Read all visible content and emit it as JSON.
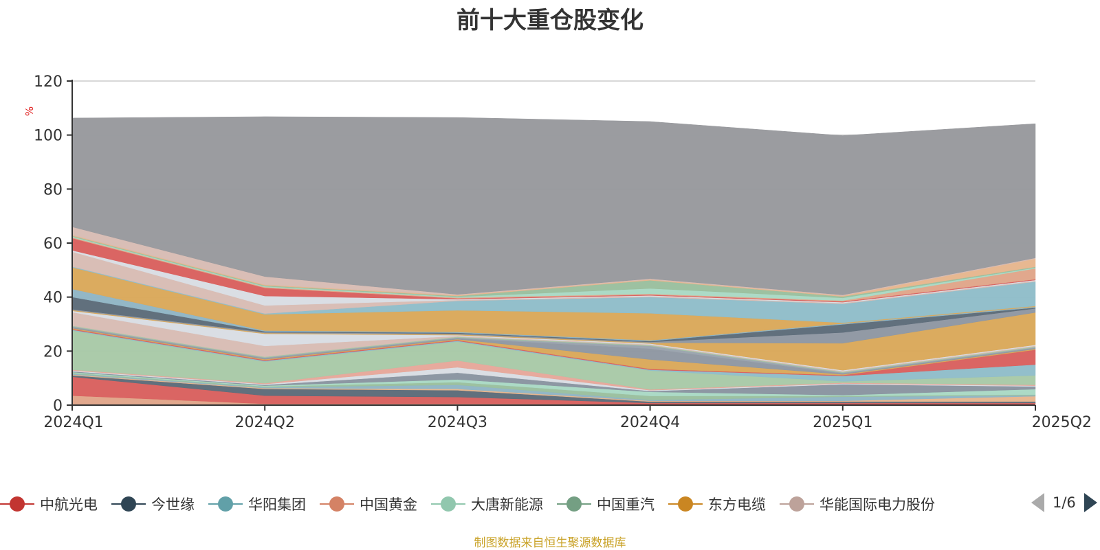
{
  "chart_data": {
    "type": "area",
    "stacked": true,
    "title": "前十大重仓股变化",
    "ylabel": "%",
    "ylim": [
      0,
      120
    ],
    "yticks": [
      0,
      20,
      40,
      60,
      80,
      100,
      120
    ],
    "categories": [
      "2024Q1",
      "2024Q2",
      "2024Q3",
      "2024Q4",
      "2025Q1",
      "2025Q2"
    ],
    "series": [
      {
        "color": "#e0a589",
        "values": [
          3.5,
          0.5,
          0.5,
          0.3,
          0.3,
          0.3
        ]
      },
      {
        "color": "#d9605e",
        "values": [
          7.0,
          3.0,
          2.5,
          0.5,
          0.5,
          0.5
        ]
      },
      {
        "color": "#5c6b79",
        "values": [
          0.5,
          2.5,
          2.5,
          0.5,
          0.5,
          0.5
        ]
      },
      {
        "color": "#e6b68d",
        "values": [
          0.3,
          0.3,
          0.5,
          0.3,
          0.3,
          2.0
        ]
      },
      {
        "color": "#8fb5c4",
        "values": [
          0.3,
          0.3,
          1.5,
          0.3,
          1.5,
          0.3
        ]
      },
      {
        "color": "#9abf9e",
        "values": [
          0.3,
          0.3,
          1.0,
          1.5,
          0.3,
          0.3
        ]
      },
      {
        "color": "#a9d9c4",
        "values": [
          0.3,
          0.3,
          1.0,
          1.5,
          0.3,
          2.0
        ]
      },
      {
        "color": "#8994a0",
        "values": [
          0.3,
          0.3,
          2.5,
          0.3,
          4.0,
          1.0
        ]
      },
      {
        "color": "#d9dde3",
        "values": [
          0.3,
          0.3,
          2.0,
          0.3,
          0.3,
          0.3
        ]
      },
      {
        "color": "#e6a79a",
        "values": [
          0.3,
          0.3,
          2.5,
          0.3,
          0.3,
          0.3
        ]
      },
      {
        "color": "#a8c9a7",
        "values": [
          14.5,
          8.0,
          7.0,
          7.0,
          0.5,
          3.5
        ]
      },
      {
        "color": "#8fbdc9",
        "values": [
          0.3,
          0.3,
          0.3,
          0.3,
          2.0,
          4.0
        ]
      },
      {
        "color": "#d9605e",
        "values": [
          0.3,
          0.3,
          0.3,
          0.3,
          0.3,
          5.5
        ]
      },
      {
        "color": "#daa85a",
        "values": [
          0.3,
          0.3,
          0.3,
          3.5,
          0.3,
          0.3
        ]
      },
      {
        "color": "#8e97a2",
        "values": [
          0.3,
          0.3,
          0.3,
          4.0,
          0.3,
          0.3
        ]
      },
      {
        "color": "#9aa3ad",
        "values": [
          0.3,
          0.3,
          0.3,
          1.0,
          0.3,
          0.3
        ]
      },
      {
        "color": "#a5c3a5",
        "values": [
          0.3,
          0.3,
          0.3,
          0.3,
          0.3,
          0.3
        ]
      },
      {
        "color": "#d8bcb4",
        "values": [
          5.0,
          4.0,
          0.3,
          0.3,
          0.3,
          0.3
        ]
      },
      {
        "color": "#d9dde3",
        "values": [
          0.5,
          4.5,
          0.3,
          0.3,
          0.3,
          0.3
        ]
      },
      {
        "color": "#daa85a",
        "values": [
          0.3,
          0.3,
          0.3,
          0.3,
          10.0,
          12.0
        ]
      },
      {
        "color": "#8e97a2",
        "values": [
          0.3,
          0.3,
          0.3,
          0.3,
          4.0,
          1.5
        ]
      },
      {
        "color": "#5c6b79",
        "values": [
          4.5,
          0.3,
          0.3,
          0.3,
          3.0,
          0.3
        ]
      },
      {
        "color": "#8fb5c4",
        "values": [
          3.0,
          0.3,
          0.3,
          0.3,
          0.3,
          0.3
        ]
      },
      {
        "color": "#daa85a",
        "values": [
          8.0,
          6.0,
          8.0,
          10.0,
          0.3,
          0.3
        ]
      },
      {
        "color": "#8fbdc9",
        "values": [
          0.3,
          0.3,
          3.5,
          6.0,
          7.0,
          9.0
        ]
      },
      {
        "color": "#d8bcb4",
        "values": [
          5.5,
          3.0,
          0.3,
          0.3,
          0.3,
          0.3
        ]
      },
      {
        "color": "#d9dde3",
        "values": [
          0.5,
          3.5,
          0.3,
          0.3,
          0.3,
          0.3
        ]
      },
      {
        "color": "#d9605e",
        "values": [
          4.5,
          3.0,
          0.3,
          0.3,
          0.3,
          0.3
        ]
      },
      {
        "color": "#e0a589",
        "values": [
          0.3,
          0.3,
          0.3,
          0.3,
          0.3,
          4.0
        ]
      },
      {
        "color": "#a9d9c4",
        "values": [
          0.3,
          0.3,
          0.3,
          2.0,
          1.0,
          0.3
        ]
      },
      {
        "color": "#9abf9e",
        "values": [
          0.3,
          0.3,
          0.3,
          3.0,
          0.5,
          0.3
        ]
      },
      {
        "color": "#e6b68d",
        "values": [
          0.3,
          0.3,
          0.3,
          0.3,
          0.3,
          3.0
        ]
      },
      {
        "color": "#d8bcb4",
        "values": [
          3.0,
          3.0,
          0.3,
          0.3,
          0.3,
          0.3
        ]
      },
      {
        "color": "#98999d",
        "values": [
          40.3,
          59.2,
          65.5,
          58.2,
          59.0,
          49.7
        ]
      }
    ],
    "legend": {
      "position": "bottom",
      "page": "1/6",
      "items": [
        {
          "label": "中航光电",
          "color": "#c23531"
        },
        {
          "label": "今世缘",
          "color": "#2f4554"
        },
        {
          "label": "华阳集团",
          "color": "#61a0a8"
        },
        {
          "label": "中国黄金",
          "color": "#d48265"
        },
        {
          "label": "大唐新能源",
          "color": "#91c7ae"
        },
        {
          "label": "中国重汽",
          "color": "#749f83"
        },
        {
          "label": "东方电缆",
          "color": "#ca8622"
        },
        {
          "label": "华能国际电力股份",
          "color": "#bda29a"
        }
      ]
    },
    "note": "制图数据来自恒生聚源数据库"
  }
}
